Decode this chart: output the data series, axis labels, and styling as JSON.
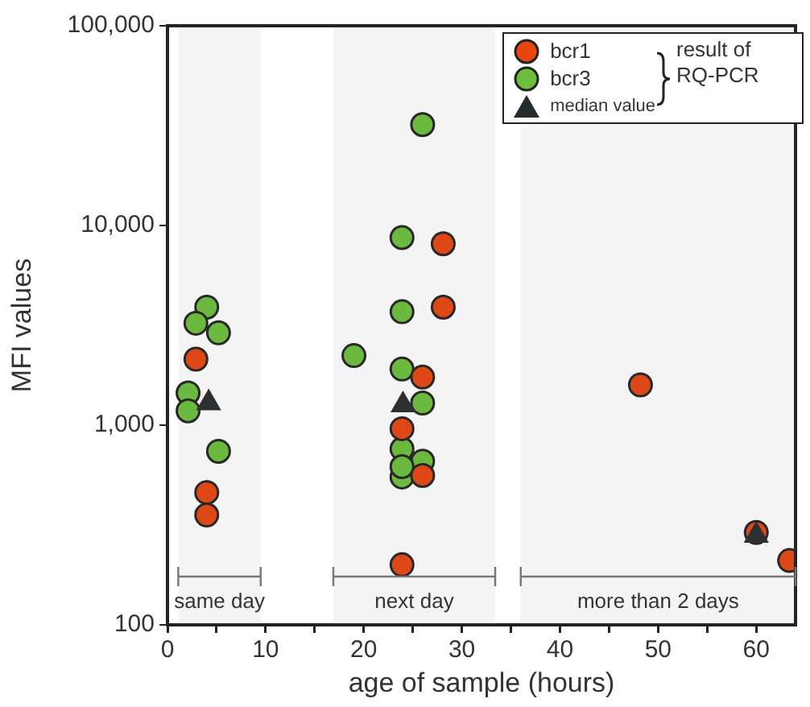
{
  "chart_data": {
    "type": "scatter",
    "xlabel": "age of sample (hours)",
    "ylabel": "MFI values",
    "log": "y",
    "xlim": [
      0,
      64
    ],
    "ylim": [
      100,
      100000
    ],
    "xticks": [
      0,
      {
        "value": 5,
        "label": null
      },
      10,
      {
        "value": 15,
        "label": null
      },
      20,
      {
        "value": 25,
        "label": null
      },
      30,
      {
        "value": 35,
        "label": null
      },
      40,
      {
        "value": 45,
        "label": null
      },
      50,
      {
        "value": 55,
        "label": null
      },
      60
    ],
    "yticks": [
      100,
      {
        "value": 1000,
        "label": "1,000"
      },
      {
        "value": 10000,
        "label": "10,000"
      },
      {
        "value": 100000,
        "label": "100,000"
      }
    ],
    "grid": false,
    "legend": "top right",
    "marker": "circle",
    "annotations": [
      "result of RQ-PCR"
    ],
    "bands": [
      {
        "axis": "x",
        "from": 1.1,
        "to": 9.5,
        "label": "same day",
        "color": "#777777"
      },
      {
        "axis": "x",
        "from": 16.9,
        "to": 33.4,
        "label": "next day",
        "color": "#777777"
      },
      {
        "axis": "x",
        "from": 36,
        "to": 64,
        "label": "more than 2 days",
        "color": "#777777"
      }
    ],
    "series": [
      {
        "name": "bcr1",
        "color": "#e8450f",
        "x": [
          2.9,
          4.0,
          4.0,
          28.1,
          28.1,
          26.0,
          23.9,
          26.0,
          23.9,
          48.2,
          60.0,
          63.4
        ],
        "values": [
          2140,
          460,
          355,
          8100,
          3900,
          1740,
          960,
          560,
          200,
          1590,
          290,
          210
        ]
      },
      {
        "name": "bcr3",
        "color": "#6cbf3c",
        "x": [
          4.0,
          2.9,
          5.2,
          2.1,
          2.1,
          5.2,
          19.0,
          26.0,
          23.9,
          23.9,
          23.9,
          26.0,
          23.9,
          23.9,
          26.0,
          23.9
        ],
        "values": [
          3900,
          3240,
          2900,
          1450,
          1180,
          740,
          2230,
          32000,
          8700,
          3700,
          1910,
          1290,
          760,
          550,
          660,
          620
        ]
      },
      {
        "name": "median value",
        "color": "#262b2e",
        "marker": "triangle",
        "x": [
          4.2,
          24.0,
          60.0
        ],
        "values": [
          1290,
          1260,
          280
        ]
      }
    ]
  }
}
